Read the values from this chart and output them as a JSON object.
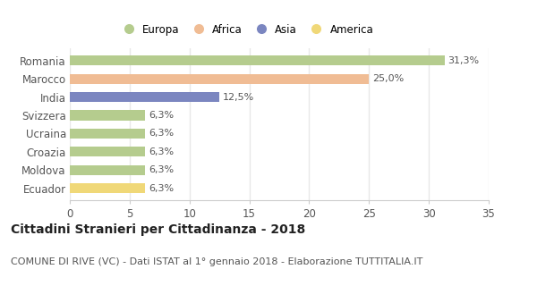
{
  "categories": [
    "Romania",
    "Marocco",
    "India",
    "Svizzera",
    "Ucraina",
    "Croazia",
    "Moldova",
    "Ecuador"
  ],
  "values": [
    31.3,
    25.0,
    12.5,
    6.3,
    6.3,
    6.3,
    6.3,
    6.3
  ],
  "labels": [
    "31,3%",
    "25,0%",
    "12,5%",
    "6,3%",
    "6,3%",
    "6,3%",
    "6,3%",
    "6,3%"
  ],
  "colors": [
    "#b5cc8e",
    "#f0bc94",
    "#7b86c0",
    "#b5cc8e",
    "#b5cc8e",
    "#b5cc8e",
    "#b5cc8e",
    "#f0d878"
  ],
  "legend_labels": [
    "Europa",
    "Africa",
    "Asia",
    "America"
  ],
  "legend_colors": [
    "#b5cc8e",
    "#f0bc94",
    "#7b86c0",
    "#f0d878"
  ],
  "xlim": [
    0,
    35
  ],
  "xticks": [
    0,
    5,
    10,
    15,
    20,
    25,
    30,
    35
  ],
  "title": "Cittadini Stranieri per Cittadinanza - 2018",
  "subtitle": "COMUNE DI RIVE (VC) - Dati ISTAT al 1° gennaio 2018 - Elaborazione TUTTITALIA.IT",
  "background_color": "#ffffff",
  "plot_bg_color": "#ffffff",
  "grid_color": "#e8e8e8",
  "title_fontsize": 10,
  "subtitle_fontsize": 8,
  "label_fontsize": 8,
  "tick_fontsize": 8.5,
  "bar_height": 0.55
}
